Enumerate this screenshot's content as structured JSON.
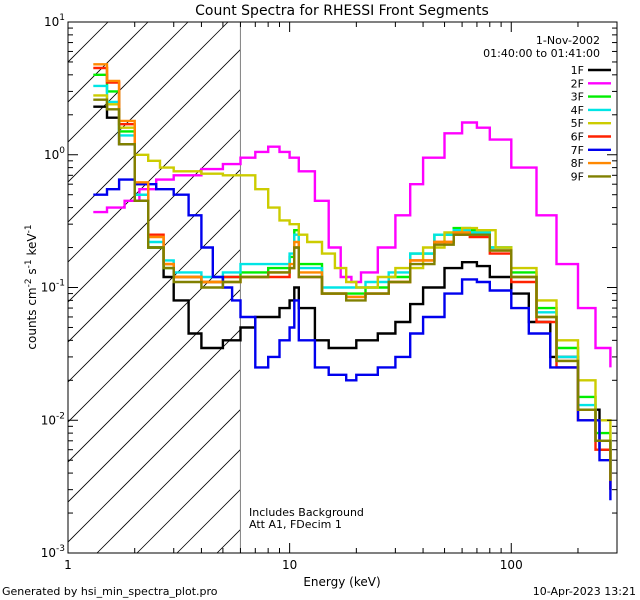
{
  "chart_data": {
    "type": "line",
    "title": "Count Spectra for RHESSI Front Segments",
    "xlabel": "Energy (keV)",
    "ylabel": "counts cm-2 s-1 keV-1",
    "xscale": "log",
    "yscale": "log",
    "xlim": [
      1,
      300
    ],
    "ylim": [
      0.001,
      10
    ],
    "x_tick_labels": [
      {
        "value": 1,
        "label": "1"
      },
      {
        "value": 10,
        "label": "10"
      },
      {
        "value": 100,
        "label": "100"
      }
    ],
    "y_tick_labels": [
      {
        "value": 10,
        "label": "10",
        "exp": "1"
      },
      {
        "value": 1,
        "label": "10",
        "exp": "0"
      },
      {
        "value": 0.1,
        "label": "10",
        "exp": "-1"
      },
      {
        "value": 0.01,
        "label": "10",
        "exp": "-2"
      },
      {
        "value": 0.001,
        "label": "10",
        "exp": "-3"
      }
    ],
    "legend_header": {
      "date": "1-Nov-2002",
      "time_range": "01:40:00 to 01:41:00"
    },
    "annotations": {
      "line1": "Includes Background",
      "line2": "Att A1, FDecim 1"
    },
    "hatched_region": {
      "x_from": 1,
      "x_to": 6
    },
    "series": [
      {
        "name": "1F",
        "color": "#000000",
        "points": [
          [
            1.3,
            2.3
          ],
          [
            1.5,
            1.9
          ],
          [
            1.7,
            1.2
          ],
          [
            2,
            0.45
          ],
          [
            2.3,
            0.2
          ],
          [
            2.7,
            0.12
          ],
          [
            3,
            0.08
          ],
          [
            3.5,
            0.045
          ],
          [
            4,
            0.035
          ],
          [
            5,
            0.04
          ],
          [
            6,
            0.05
          ],
          [
            7,
            0.06
          ],
          [
            9,
            0.07
          ],
          [
            10,
            0.08
          ],
          [
            10.5,
            0.1
          ],
          [
            11,
            0.07
          ],
          [
            13,
            0.04
          ],
          [
            15,
            0.035
          ],
          [
            18,
            0.035
          ],
          [
            20,
            0.04
          ],
          [
            25,
            0.045
          ],
          [
            30,
            0.055
          ],
          [
            35,
            0.075
          ],
          [
            40,
            0.1
          ],
          [
            50,
            0.14
          ],
          [
            60,
            0.155
          ],
          [
            70,
            0.145
          ],
          [
            80,
            0.12
          ],
          [
            100,
            0.09
          ],
          [
            120,
            0.055
          ],
          [
            150,
            0.03
          ],
          [
            200,
            0.012
          ],
          [
            250,
            0.006
          ],
          [
            280,
            0.003
          ]
        ]
      },
      {
        "name": "2F",
        "color": "#ff00ff",
        "points": [
          [
            1.3,
            0.37
          ],
          [
            1.5,
            0.4
          ],
          [
            1.8,
            0.45
          ],
          [
            2.1,
            0.55
          ],
          [
            2.5,
            0.65
          ],
          [
            3,
            0.7
          ],
          [
            4,
            0.78
          ],
          [
            5,
            0.85
          ],
          [
            6,
            0.95
          ],
          [
            7,
            1.05
          ],
          [
            8,
            1.15
          ],
          [
            9,
            1.05
          ],
          [
            10,
            0.95
          ],
          [
            11,
            0.75
          ],
          [
            13,
            0.45
          ],
          [
            15,
            0.2
          ],
          [
            17,
            0.12
          ],
          [
            19,
            0.11
          ],
          [
            21,
            0.13
          ],
          [
            25,
            0.2
          ],
          [
            30,
            0.35
          ],
          [
            35,
            0.6
          ],
          [
            40,
            0.95
          ],
          [
            50,
            1.45
          ],
          [
            60,
            1.75
          ],
          [
            70,
            1.6
          ],
          [
            80,
            1.3
          ],
          [
            100,
            0.8
          ],
          [
            130,
            0.35
          ],
          [
            160,
            0.15
          ],
          [
            200,
            0.07
          ],
          [
            240,
            0.035
          ],
          [
            280,
            0.025
          ]
        ]
      },
      {
        "name": "3F",
        "color": "#00ee00",
        "points": [
          [
            1.3,
            4
          ],
          [
            1.5,
            3
          ],
          [
            1.7,
            1.5
          ],
          [
            2,
            0.5
          ],
          [
            2.3,
            0.2
          ],
          [
            2.7,
            0.14
          ],
          [
            3,
            0.12
          ],
          [
            4,
            0.11
          ],
          [
            5,
            0.12
          ],
          [
            6,
            0.13
          ],
          [
            8,
            0.14
          ],
          [
            10,
            0.17
          ],
          [
            10.5,
            0.27
          ],
          [
            11,
            0.15
          ],
          [
            14,
            0.09
          ],
          [
            18,
            0.09
          ],
          [
            22,
            0.1
          ],
          [
            28,
            0.12
          ],
          [
            35,
            0.18
          ],
          [
            45,
            0.25
          ],
          [
            55,
            0.28
          ],
          [
            65,
            0.27
          ],
          [
            80,
            0.2
          ],
          [
            100,
            0.13
          ],
          [
            130,
            0.07
          ],
          [
            160,
            0.035
          ],
          [
            200,
            0.015
          ],
          [
            240,
            0.008
          ],
          [
            280,
            0.004
          ]
        ]
      },
      {
        "name": "4F",
        "color": "#00e5e5",
        "points": [
          [
            1.3,
            3.3
          ],
          [
            1.5,
            2.5
          ],
          [
            1.7,
            1.4
          ],
          [
            2,
            0.5
          ],
          [
            2.3,
            0.22
          ],
          [
            2.7,
            0.16
          ],
          [
            3,
            0.13
          ],
          [
            4,
            0.12
          ],
          [
            5,
            0.13
          ],
          [
            6,
            0.15
          ],
          [
            8,
            0.15
          ],
          [
            10,
            0.18
          ],
          [
            10.5,
            0.25
          ],
          [
            11,
            0.14
          ],
          [
            14,
            0.1
          ],
          [
            18,
            0.1
          ],
          [
            22,
            0.11
          ],
          [
            28,
            0.13
          ],
          [
            35,
            0.18
          ],
          [
            45,
            0.25
          ],
          [
            55,
            0.27
          ],
          [
            65,
            0.26
          ],
          [
            80,
            0.2
          ],
          [
            100,
            0.12
          ],
          [
            130,
            0.065
          ],
          [
            160,
            0.03
          ],
          [
            200,
            0.013
          ],
          [
            240,
            0.007
          ],
          [
            280,
            0.004
          ]
        ]
      },
      {
        "name": "5F",
        "color": "#cccc00",
        "points": [
          [
            1.3,
            2.8
          ],
          [
            1.5,
            2.4
          ],
          [
            1.7,
            1.6
          ],
          [
            2,
            1.0
          ],
          [
            2.3,
            0.9
          ],
          [
            2.6,
            0.8
          ],
          [
            3,
            0.75
          ],
          [
            4,
            0.72
          ],
          [
            5,
            0.7
          ],
          [
            6,
            0.7
          ],
          [
            7,
            0.55
          ],
          [
            8,
            0.4
          ],
          [
            9,
            0.32
          ],
          [
            10,
            0.3
          ],
          [
            11,
            0.25
          ],
          [
            12,
            0.22
          ],
          [
            14,
            0.18
          ],
          [
            16,
            0.14
          ],
          [
            18,
            0.11
          ],
          [
            20,
            0.1
          ],
          [
            25,
            0.12
          ],
          [
            30,
            0.14
          ],
          [
            40,
            0.2
          ],
          [
            50,
            0.26
          ],
          [
            60,
            0.28
          ],
          [
            70,
            0.27
          ],
          [
            85,
            0.2
          ],
          [
            100,
            0.14
          ],
          [
            130,
            0.08
          ],
          [
            160,
            0.04
          ],
          [
            200,
            0.02
          ],
          [
            240,
            0.01
          ],
          [
            280,
            0.005
          ]
        ]
      },
      {
        "name": "6F",
        "color": "#ff2200",
        "points": [
          [
            1.3,
            4.5
          ],
          [
            1.5,
            3.5
          ],
          [
            1.7,
            1.7
          ],
          [
            2,
            0.6
          ],
          [
            2.3,
            0.25
          ],
          [
            2.7,
            0.15
          ],
          [
            3,
            0.12
          ],
          [
            4,
            0.11
          ],
          [
            5,
            0.12
          ],
          [
            6,
            0.12
          ],
          [
            8,
            0.12
          ],
          [
            10,
            0.14
          ],
          [
            10.5,
            0.2
          ],
          [
            11,
            0.12
          ],
          [
            14,
            0.09
          ],
          [
            18,
            0.085
          ],
          [
            22,
            0.09
          ],
          [
            28,
            0.11
          ],
          [
            35,
            0.16
          ],
          [
            45,
            0.22
          ],
          [
            55,
            0.25
          ],
          [
            65,
            0.24
          ],
          [
            80,
            0.18
          ],
          [
            100,
            0.11
          ],
          [
            130,
            0.055
          ],
          [
            160,
            0.025
          ],
          [
            200,
            0.01
          ],
          [
            240,
            0.006
          ],
          [
            280,
            0.003
          ]
        ]
      },
      {
        "name": "7F",
        "color": "#0000ee",
        "points": [
          [
            1.3,
            0.5
          ],
          [
            1.5,
            0.55
          ],
          [
            1.7,
            0.65
          ],
          [
            2,
            0.6
          ],
          [
            2.5,
            0.55
          ],
          [
            3,
            0.5
          ],
          [
            3.5,
            0.35
          ],
          [
            4,
            0.2
          ],
          [
            4.5,
            0.12
          ],
          [
            5,
            0.1
          ],
          [
            5.5,
            0.08
          ],
          [
            6,
            0.06
          ],
          [
            7,
            0.025
          ],
          [
            8,
            0.03
          ],
          [
            9,
            0.04
          ],
          [
            10,
            0.05
          ],
          [
            10.5,
            0.08
          ],
          [
            11,
            0.04
          ],
          [
            13,
            0.025
          ],
          [
            15,
            0.022
          ],
          [
            18,
            0.02
          ],
          [
            20,
            0.022
          ],
          [
            25,
            0.025
          ],
          [
            30,
            0.03
          ],
          [
            35,
            0.045
          ],
          [
            40,
            0.06
          ],
          [
            50,
            0.09
          ],
          [
            60,
            0.115
          ],
          [
            70,
            0.11
          ],
          [
            80,
            0.095
          ],
          [
            100,
            0.07
          ],
          [
            120,
            0.045
          ],
          [
            150,
            0.025
          ],
          [
            200,
            0.01
          ],
          [
            250,
            0.005
          ],
          [
            280,
            0.0025
          ]
        ]
      },
      {
        "name": "8F",
        "color": "#ff8800",
        "points": [
          [
            1.3,
            4.8
          ],
          [
            1.5,
            3.6
          ],
          [
            1.7,
            1.8
          ],
          [
            2,
            0.62
          ],
          [
            2.3,
            0.24
          ],
          [
            2.7,
            0.15
          ],
          [
            3,
            0.12
          ],
          [
            4,
            0.11
          ],
          [
            5,
            0.11
          ],
          [
            6,
            0.12
          ],
          [
            8,
            0.13
          ],
          [
            10,
            0.15
          ],
          [
            10.5,
            0.22
          ],
          [
            11,
            0.13
          ],
          [
            14,
            0.09
          ],
          [
            18,
            0.085
          ],
          [
            22,
            0.09
          ],
          [
            28,
            0.11
          ],
          [
            35,
            0.16
          ],
          [
            45,
            0.22
          ],
          [
            55,
            0.26
          ],
          [
            65,
            0.25
          ],
          [
            80,
            0.19
          ],
          [
            100,
            0.12
          ],
          [
            130,
            0.06
          ],
          [
            160,
            0.028
          ],
          [
            200,
            0.012
          ],
          [
            240,
            0.007
          ],
          [
            280,
            0.0035
          ]
        ]
      },
      {
        "name": "9F",
        "color": "#808000",
        "points": [
          [
            1.3,
            2.6
          ],
          [
            1.5,
            2.2
          ],
          [
            1.7,
            1.2
          ],
          [
            2,
            0.45
          ],
          [
            2.3,
            0.2
          ],
          [
            2.7,
            0.14
          ],
          [
            3,
            0.11
          ],
          [
            4,
            0.1
          ],
          [
            5,
            0.11
          ],
          [
            6,
            0.12
          ],
          [
            8,
            0.13
          ],
          [
            10,
            0.14
          ],
          [
            10.5,
            0.2
          ],
          [
            11,
            0.12
          ],
          [
            14,
            0.09
          ],
          [
            18,
            0.08
          ],
          [
            22,
            0.09
          ],
          [
            28,
            0.11
          ],
          [
            35,
            0.15
          ],
          [
            45,
            0.21
          ],
          [
            55,
            0.25
          ],
          [
            65,
            0.25
          ],
          [
            80,
            0.19
          ],
          [
            100,
            0.12
          ],
          [
            130,
            0.06
          ],
          [
            160,
            0.028
          ],
          [
            200,
            0.012
          ],
          [
            240,
            0.007
          ],
          [
            280,
            0.0035
          ]
        ]
      }
    ]
  },
  "footer": {
    "generated_by": "Generated by hsi_min_spectra_plot.pro",
    "timestamp": "10-Apr-2023 13:21"
  }
}
